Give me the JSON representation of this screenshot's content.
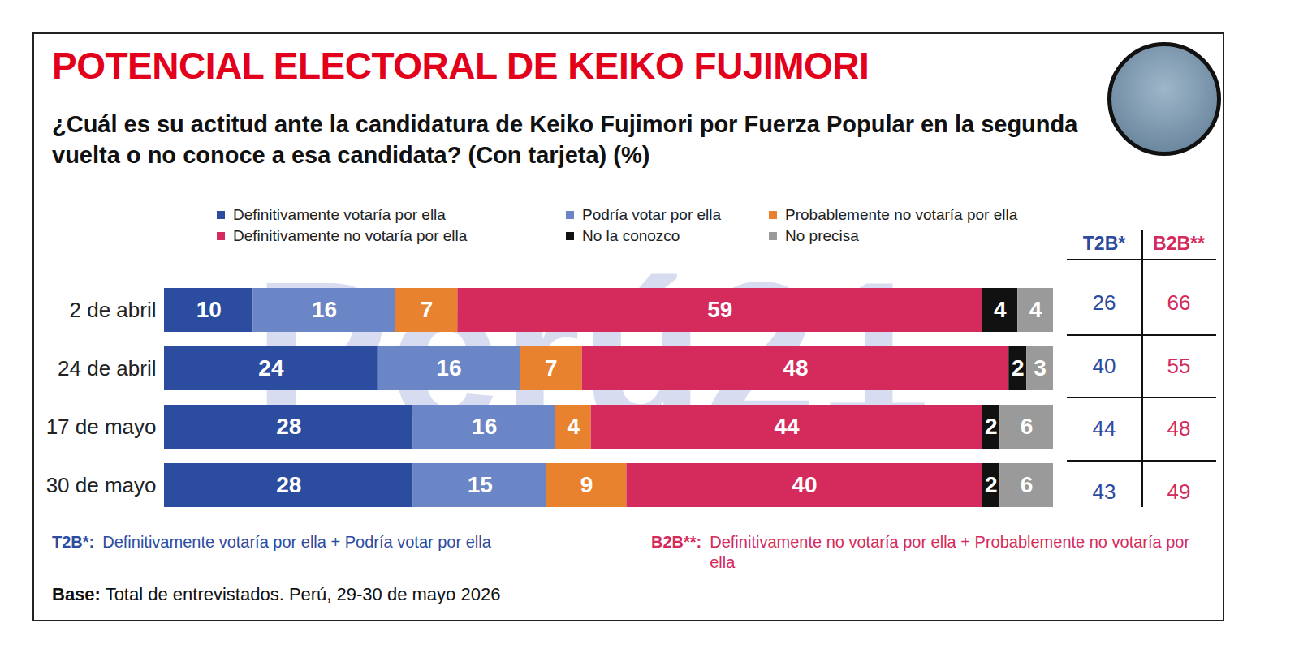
{
  "chart_data": {
    "type": "bar",
    "title": "POTENCIAL ELECTORAL DE KEIKO FUJIMORI",
    "subtitle": "¿Cuál es su actitud ante la candidatura de Keiko Fujimori por Fuerza Popular en la segunda vuelta o no conoce a esa candidata? (Con tarjeta) (%)",
    "watermark": "Perú21",
    "orientation": "horizontal",
    "stacked": true,
    "data_labels": true,
    "tick_labels": "y",
    "legend": "top",
    "categories": [
      "2 de abril",
      "24 de abril",
      "17 de mayo",
      "30 de mayo"
    ],
    "xlim": [
      0,
      100
    ],
    "xticks": [],
    "series": [
      {
        "name": "Definitivamente votaría por ella",
        "color": "#2c4c9f",
        "values": [
          10,
          24,
          28,
          28
        ]
      },
      {
        "name": "Podría votar por ella",
        "color": "#6a86c6",
        "values": [
          16,
          16,
          16,
          15
        ]
      },
      {
        "name": "Probablemente no votaría por ella",
        "color": "#e8822f",
        "values": [
          7,
          7,
          4,
          9
        ]
      },
      {
        "name": "Definitivamente no votaría por ella",
        "color": "#d42b5c",
        "values": [
          59,
          48,
          44,
          40
        ]
      },
      {
        "name": "No la conozco",
        "color": "#111111",
        "values": [
          4,
          2,
          2,
          2
        ]
      },
      {
        "name": "No precisa",
        "color": "#9a9a9a",
        "values": [
          4,
          3,
          6,
          6
        ]
      }
    ],
    "summary": {
      "columns": [
        "T2B*",
        "B2B**"
      ],
      "colors": [
        "#2c4c9f",
        "#d42b5c"
      ],
      "values": [
        [
          26,
          66
        ],
        [
          40,
          55
        ],
        [
          44,
          48
        ],
        [
          43,
          49
        ]
      ]
    },
    "notes": [
      {
        "label": "T2B*:",
        "text": "Definitivamente votaría por ella + Podría votar por ella"
      },
      {
        "label": "B2B**:",
        "text": "Definitivamente no votaría por ella + Probablemente no votaría por ella"
      }
    ],
    "source": {
      "label": "Base:",
      "text": "Total de entrevistados. Perú, 29-30 de mayo 2026"
    }
  }
}
